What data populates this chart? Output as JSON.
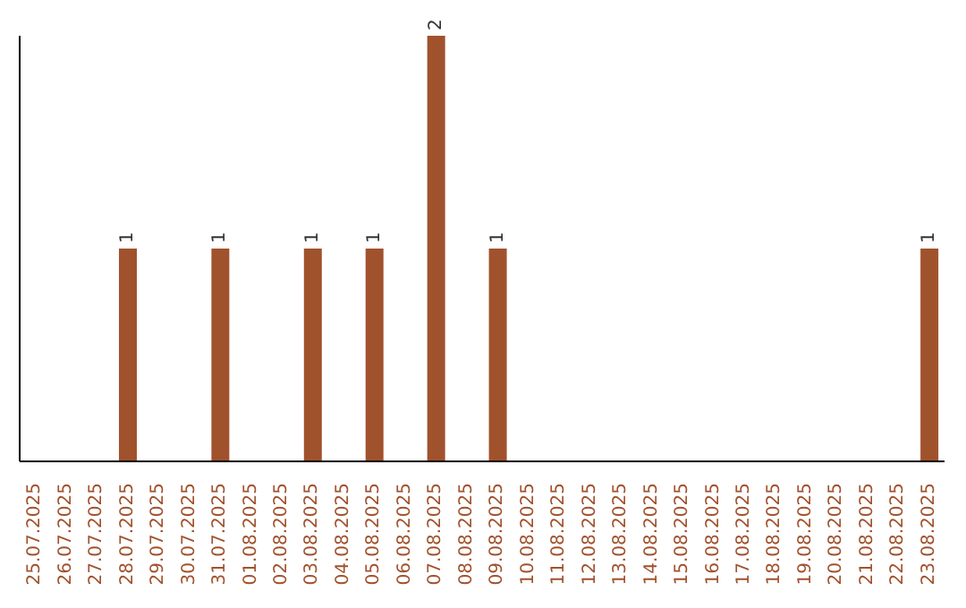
{
  "chart_data": {
    "type": "bar",
    "categories": [
      "25.07.2025",
      "26.07.2025",
      "27.07.2025",
      "28.07.2025",
      "29.07.2025",
      "30.07.2025",
      "31.07.2025",
      "01.08.2025",
      "02.08.2025",
      "03.08.2025",
      "04.08.2025",
      "05.08.2025",
      "06.08.2025",
      "07.08.2025",
      "08.08.2025",
      "09.08.2025",
      "10.08.2025",
      "11.08.2025",
      "12.08.2025",
      "13.08.2025",
      "14.08.2025",
      "15.08.2025",
      "16.08.2025",
      "17.08.2025",
      "18.08.2025",
      "19.08.2025",
      "20.08.2025",
      "21.08.2025",
      "22.08.2025",
      "23.08.2025"
    ],
    "values": [
      null,
      null,
      null,
      1,
      null,
      null,
      1,
      null,
      null,
      1,
      null,
      1,
      null,
      2,
      null,
      1,
      null,
      null,
      null,
      null,
      null,
      null,
      null,
      null,
      null,
      null,
      null,
      null,
      null,
      1
    ],
    "color": "#a0522d",
    "data_labels": true,
    "grid": false,
    "legend": false
  }
}
